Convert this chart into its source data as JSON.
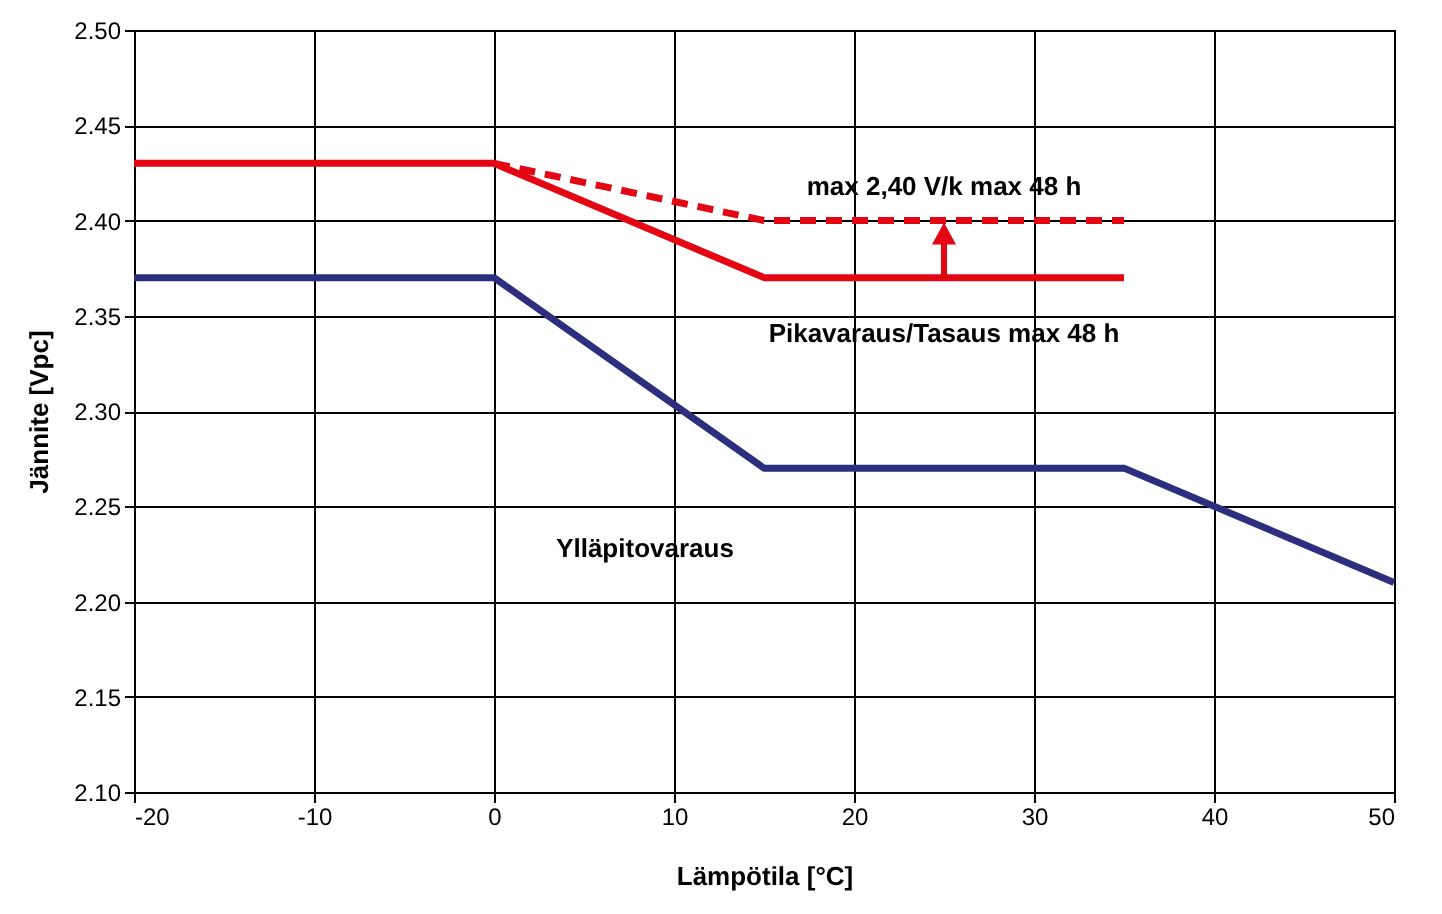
{
  "chart_data": {
    "type": "line",
    "xlabel": "Lämpötila [°C]",
    "ylabel": "Jännite [Vpc]",
    "series": [
      {
        "name": "Pikavaraus/Tasaus max 48 h",
        "color": "#e30613",
        "x": [
          -20,
          0,
          15,
          35
        ],
        "values": [
          2.43,
          2.43,
          2.37,
          2.37
        ],
        "line_style": "solid"
      },
      {
        "name": "max 2,40 V/k max 48 h",
        "color": "#e30613",
        "x": [
          0,
          15,
          35
        ],
        "values": [
          2.43,
          2.4,
          2.4
        ],
        "line_style": "dashed"
      },
      {
        "name": "Ylläpitovaraus",
        "color": "#2b2f7e",
        "x": [
          -20,
          0,
          15,
          35,
          50
        ],
        "values": [
          2.37,
          2.37,
          2.27,
          2.27,
          2.21
        ],
        "line_style": "solid"
      }
    ],
    "xlim": [
      -20,
      50
    ],
    "xticks": [
      -20,
      -10,
      0,
      10,
      20,
      30,
      40,
      50
    ],
    "ylim": [
      2.1,
      2.5
    ],
    "yticks": [
      {
        "value": 2.1,
        "label": "2.10"
      },
      {
        "value": 2.15,
        "label": "2.15"
      },
      {
        "value": 2.2,
        "label": "2.20"
      },
      {
        "value": 2.25,
        "label": "2.25"
      },
      {
        "value": 2.3,
        "label": "2.30"
      },
      {
        "value": 2.35,
        "label": "2.35"
      },
      {
        "value": 2.4,
        "label": "2.40"
      },
      {
        "value": 2.45,
        "label": "2.45"
      },
      {
        "value": 2.5,
        "label": "2.50"
      }
    ],
    "grid": true,
    "marker": "none"
  }
}
